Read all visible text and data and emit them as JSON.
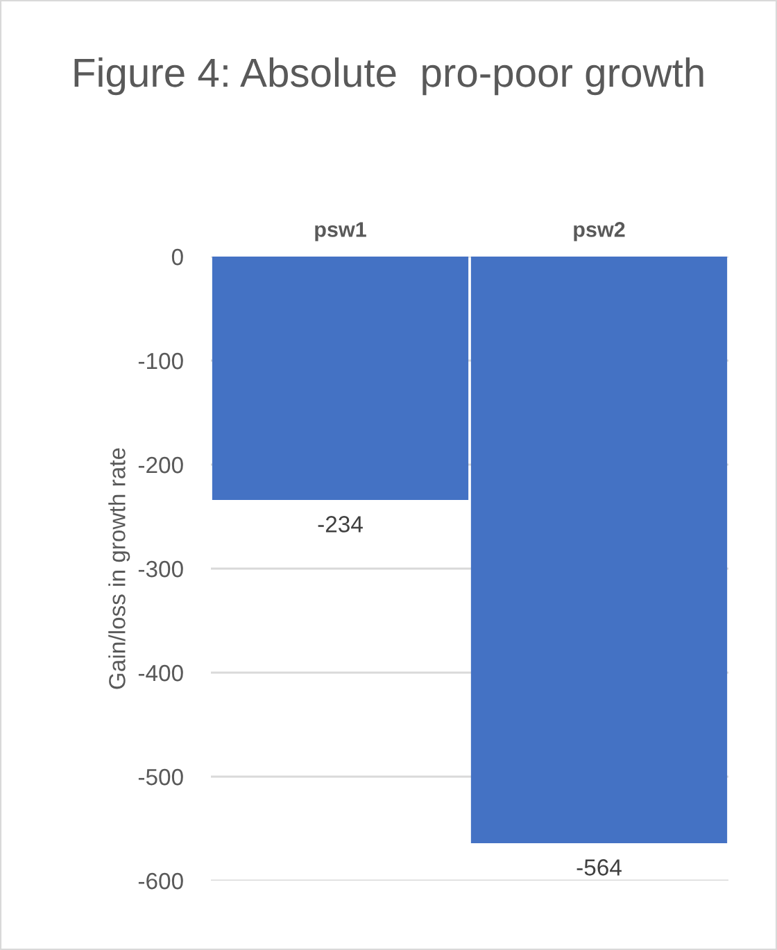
{
  "chart_data": {
    "type": "bar",
    "title": "Figure 4: Absolute  pro-poor growth",
    "ylabel": "Gain/loss in growth rate",
    "categories": [
      "psw1",
      "psw2"
    ],
    "values": [
      -234,
      -564
    ],
    "color": "#4472c4",
    "ylim": [
      -600,
      0
    ],
    "yticks": [
      0,
      -100,
      -200,
      -300,
      -400,
      -500,
      -600
    ],
    "grid": "y",
    "data_labels": true,
    "legend": false
  }
}
